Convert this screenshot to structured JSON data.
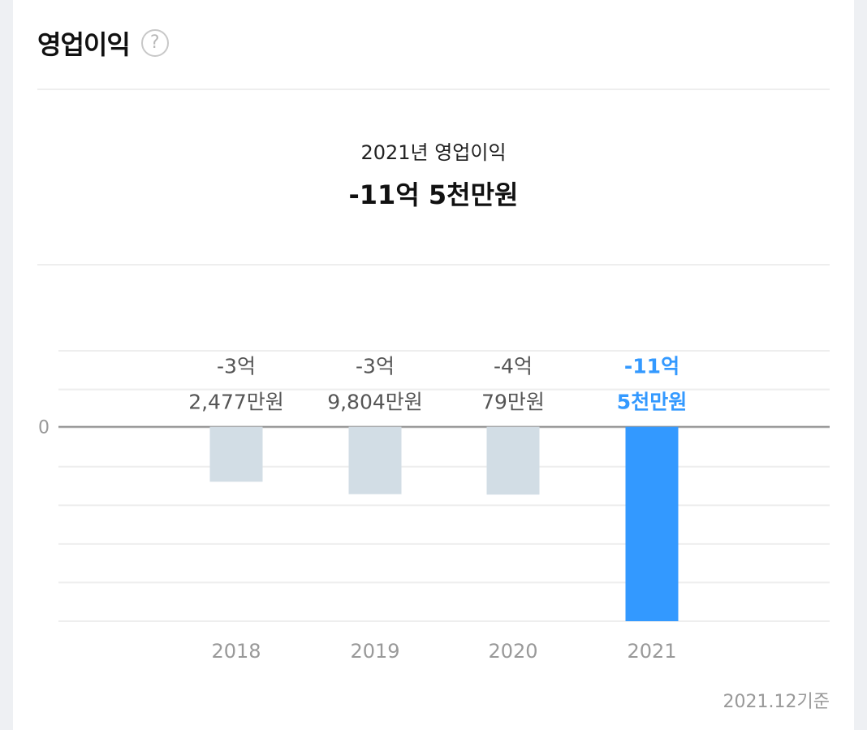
{
  "header": {
    "title": "영업이익",
    "help_icon": "question-circle-icon"
  },
  "summary": {
    "label": "2021년 영업이익",
    "value": "-11억 5천만원"
  },
  "footnote": "2021.12기준",
  "colors": {
    "bar_default": "#d2dde5",
    "bar_highlight": "#3399ff",
    "label_default": "#555555",
    "label_highlight": "#3399ff"
  },
  "chart_data": {
    "type": "bar",
    "categories": [
      "2018",
      "2019",
      "2020",
      "2021"
    ],
    "values": [
      -32477,
      -39804,
      -40079,
      -115000
    ],
    "value_unit": "만원",
    "labels": [
      [
        "-3억",
        "2,477만원"
      ],
      [
        "-3억",
        "9,804만원"
      ],
      [
        "-4억",
        "79만원"
      ],
      [
        "-11억",
        "5천만원"
      ]
    ],
    "highlight_index": 3,
    "zero_label": "0",
    "ylim": [
      -115000,
      45000
    ],
    "grid": true
  }
}
